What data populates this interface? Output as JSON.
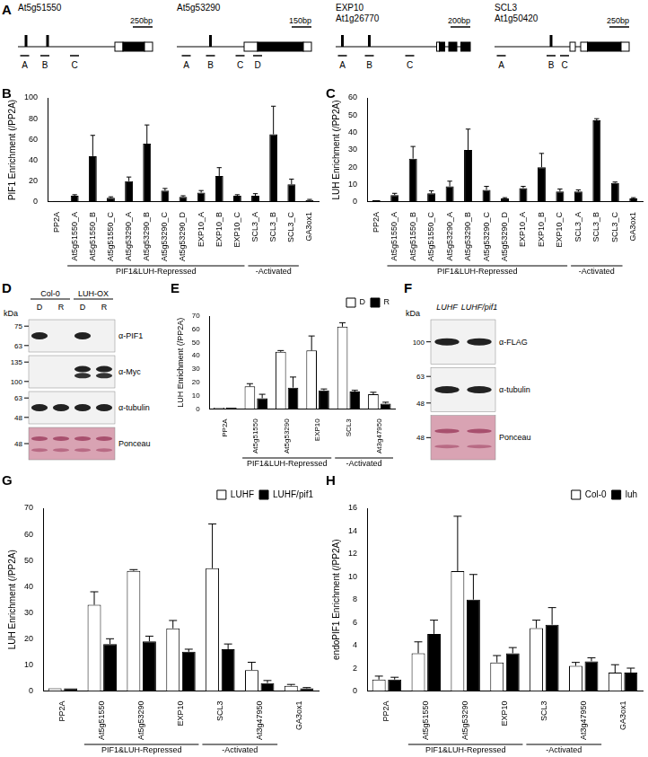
{
  "chart_data": [
    {
      "panel": "B",
      "type": "bar",
      "y_label": "PIF1 Enrichment (/PP2A)",
      "categories": [
        "PP2A",
        "At5g51550_A",
        "At5g51550_B",
        "At5g51550_C",
        "At5g53290_A",
        "At5g53290_B",
        "At5g53290_C",
        "At5g53290_D",
        "EXP10_A",
        "EXP10_B",
        "EXP10_C",
        "SCL3_A",
        "SCL3_B",
        "SCL3_C",
        "GA3ox1"
      ],
      "values": [
        1,
        6,
        44,
        4,
        20,
        56,
        11,
        5,
        9,
        25,
        6,
        6,
        65,
        17,
        2
      ],
      "errors": [
        0,
        1,
        20,
        1,
        4,
        18,
        2,
        1,
        2,
        8,
        1,
        2,
        27,
        5,
        0.5
      ],
      "color": "#000000",
      "groups": [
        {
          "label": "PIF1&LUH-Repressed",
          "categories": [
            "At5g51550_A",
            "At5g51550_B",
            "At5g51550_C",
            "At5g53290_A",
            "At5g53290_B",
            "At5g53290_C",
            "At5g53290_D",
            "EXP10_A",
            "EXP10_B",
            "EXP10_C"
          ]
        },
        {
          "label": "-Activated",
          "categories": [
            "SCL3_A",
            "SCL3_B",
            "SCL3_C"
          ]
        }
      ],
      "ylim": [
        0,
        100
      ],
      "yticks": [
        0,
        20,
        40,
        60,
        80,
        100
      ],
      "grid": false
    },
    {
      "panel": "C",
      "type": "bar",
      "y_label": "LUH Enrichment (/PP2A)",
      "categories": [
        "PP2A",
        "At5g51550_A",
        "At5g51550_B",
        "At5g51550_C",
        "At5g53290_A",
        "At5g53290_B",
        "At5g53290_C",
        "At5g53290_D",
        "EXP10_A",
        "EXP10_B",
        "EXP10_C",
        "SCL3_A",
        "SCL3_B",
        "SCL3_C",
        "GA3ox1"
      ],
      "values": [
        1,
        4,
        25,
        5,
        9,
        30,
        7,
        2,
        8,
        20,
        6,
        6,
        47,
        11,
        2
      ],
      "errors": [
        0,
        1,
        7,
        1.5,
        3,
        12,
        2,
        0.5,
        1,
        8,
        1.5,
        1,
        1,
        0.5,
        0.5
      ],
      "color": "#000000",
      "groups": [
        {
          "label": "PIF1&LUH-Repressed",
          "categories": [
            "At5g51550_A",
            "At5g51550_B",
            "At5g51550_C",
            "At5g53290_A",
            "At5g53290_B",
            "At5g53290_C",
            "At5g53290_D",
            "EXP10_A",
            "EXP10_B",
            "EXP10_C"
          ]
        },
        {
          "label": "-Activated",
          "categories": [
            "SCL3_A",
            "SCL3_B",
            "SCL3_C"
          ]
        }
      ],
      "ylim": [
        0,
        60
      ],
      "yticks": [
        0,
        10,
        20,
        30,
        40,
        50,
        60
      ],
      "grid": false
    },
    {
      "panel": "E",
      "type": "bar",
      "y_label": "LUH Enrichment (/PP2A)",
      "categories": [
        "PP2A",
        "At5g51550",
        "At5g53290",
        "EXP10",
        "SCL3",
        "At3g47950"
      ],
      "series": [
        {
          "name": "D",
          "color": "#ffffff",
          "values": [
            1,
            17,
            43,
            44,
            62,
            11
          ],
          "errors": [
            0,
            2,
            1,
            11,
            3,
            1.5
          ]
        },
        {
          "name": "R",
          "color": "#000000",
          "values": [
            1,
            8,
            16,
            14,
            13,
            4
          ],
          "errors": [
            0,
            3,
            8,
            1,
            1,
            1
          ]
        }
      ],
      "groups": [
        {
          "label": "PIF1&LUH-Repressed",
          "categories": [
            "At5g51550",
            "At5g53290",
            "EXP10"
          ]
        },
        {
          "label": "-Activated",
          "categories": [
            "SCL3",
            "At3g47950"
          ]
        }
      ],
      "legend": "top-right",
      "ylim": [
        0,
        70
      ],
      "yticks": [
        0,
        10,
        20,
        30,
        40,
        50,
        60,
        70
      ],
      "grid": false
    },
    {
      "panel": "G",
      "type": "bar",
      "y_label": "LUH Enrichment (/PP2A)",
      "categories": [
        "PP2A",
        "At5g51550",
        "At5g53290",
        "EXP10",
        "SCL3",
        "At3g47950",
        "GA3ox1"
      ],
      "series": [
        {
          "name": "LUHF",
          "color": "#ffffff",
          "values": [
            1,
            33,
            46,
            24,
            47,
            8,
            2
          ],
          "errors": [
            0,
            5,
            0.5,
            3,
            17,
            3,
            0.5
          ]
        },
        {
          "name": "LUHF/pif1",
          "color": "#000000",
          "values": [
            1,
            18,
            19,
            15,
            16,
            3,
            1
          ],
          "errors": [
            0,
            2,
            2,
            1,
            2,
            1,
            0.3
          ]
        }
      ],
      "groups": [
        {
          "label": "PIF1&LUH-Repressed",
          "categories": [
            "At5g51550",
            "At5g53290",
            "EXP10"
          ]
        },
        {
          "label": "-Activated",
          "categories": [
            "SCL3",
            "At3g47950"
          ]
        }
      ],
      "legend": "top-right",
      "ylim": [
        0,
        70
      ],
      "yticks": [
        0,
        10,
        20,
        30,
        40,
        50,
        60,
        70
      ],
      "grid": false
    },
    {
      "panel": "H",
      "type": "bar",
      "y_label": "endoPIF1 Enrichment (/PP2A)",
      "categories": [
        "PP2A",
        "At5g51550",
        "At5g53290",
        "EXP10",
        "SCL3",
        "At3g47950",
        "GA3ox1"
      ],
      "series": [
        {
          "name": "Col-0",
          "color": "#ffffff",
          "values": [
            1,
            3.3,
            10.5,
            2.5,
            5.5,
            2.2,
            1.6
          ],
          "errors": [
            0.3,
            1,
            4.8,
            0.6,
            0.7,
            0.3,
            0.7
          ]
        },
        {
          "name": "luh",
          "color": "#000000",
          "values": [
            1,
            5,
            8,
            3.3,
            5.8,
            2.6,
            1.6
          ],
          "errors": [
            0.2,
            1.2,
            2.2,
            0.5,
            1.5,
            0.3,
            0.4
          ]
        }
      ],
      "groups": [
        {
          "label": "PIF1&LUH-Repressed",
          "categories": [
            "At5g51550",
            "At5g53290",
            "EXP10"
          ]
        },
        {
          "label": "-Activated",
          "categories": [
            "SCL3",
            "At3g47950"
          ]
        }
      ],
      "legend": "top-right",
      "ylim": [
        0,
        16
      ],
      "yticks": [
        0,
        2,
        4,
        6,
        8,
        10,
        12,
        14,
        16
      ],
      "grid": false
    }
  ],
  "gene_diagrams": {
    "panel": "A",
    "genes": [
      {
        "name": "At5g51550",
        "scale_bar": "250bp",
        "regions": [
          "A",
          "B",
          "C"
        ]
      },
      {
        "name": "At5g53290",
        "scale_bar": "150bp",
        "regions": [
          "A",
          "B",
          "C",
          "D"
        ]
      },
      {
        "name": "EXP10",
        "locus": "At1g26770",
        "scale_bar": "200bp",
        "regions": [
          "A",
          "B",
          "C"
        ]
      },
      {
        "name": "SCL3",
        "locus": "At1g50420",
        "scale_bar": "250bp",
        "regions": [
          "A",
          "B",
          "C"
        ]
      }
    ]
  },
  "blots": [
    {
      "panel": "D",
      "kda_label": "kDa",
      "groups": [
        {
          "label": "Col-0",
          "lanes": [
            "D",
            "R"
          ]
        },
        {
          "label": "LUH-OX",
          "lanes": [
            "D",
            "R"
          ]
        }
      ],
      "rows": [
        {
          "label": "α-PIF1",
          "markers": [
            75,
            63
          ],
          "bands": [
            true,
            false,
            true,
            false
          ]
        },
        {
          "label": "α-Myc",
          "markers": [
            135,
            100
          ],
          "bands": [
            false,
            false,
            true,
            true
          ]
        },
        {
          "label": "α-tubulin",
          "markers": [
            63,
            48
          ],
          "bands": [
            true,
            true,
            true,
            true
          ]
        },
        {
          "label": "Ponceau",
          "markers": [
            48
          ],
          "bands": [
            true,
            true,
            true,
            true
          ]
        }
      ]
    },
    {
      "panel": "F",
      "kda_label": "kDa",
      "lanes": [
        "LUHF",
        "LUHF/pif1"
      ],
      "rows": [
        {
          "label": "α-FLAG",
          "markers": [
            100
          ],
          "bands": [
            true,
            true
          ]
        },
        {
          "label": "α-tubulin",
          "markers": [
            63,
            48
          ],
          "bands": [
            true,
            true
          ]
        },
        {
          "label": "Ponceau",
          "markers": [
            48
          ],
          "bands": [
            true,
            true
          ]
        }
      ]
    }
  ]
}
